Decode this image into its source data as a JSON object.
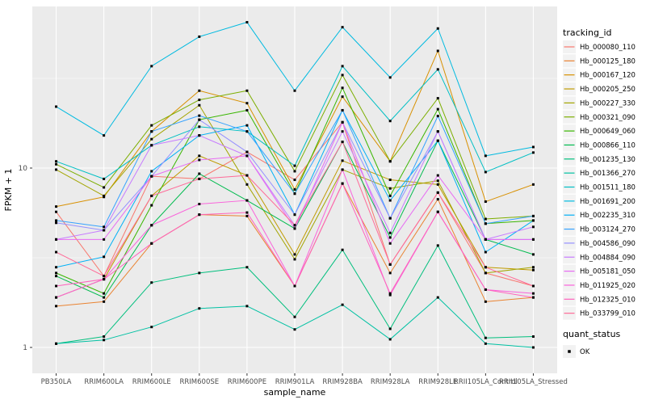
{
  "figure": {
    "y_axis": {
      "title": "FPKM + 1",
      "tick_labels": [
        "1",
        "10"
      ],
      "tick_values": [
        1,
        10
      ]
    },
    "x_axis": {
      "title": "sample_name",
      "tick_labels": [
        "PB350LA",
        "RRIM600LA",
        "RRIM600LE",
        "RRIM600SE",
        "RRIM600PE",
        "RRIM901LA",
        "RRIM928BA",
        "RRIM928LA",
        "RRIM928LE",
        "RRII105LA_Control",
        "RRII105LA_Stressed"
      ]
    },
    "legend_color": {
      "title": "tracking_id"
    },
    "legend_shape": {
      "title": "quant_status",
      "entries": [
        {
          "label": "OK",
          "shape": "filled-black-square"
        }
      ]
    },
    "colors": {
      "panel_background": "#EBEBEB",
      "grid_major": "#FFFFFF",
      "grid_minor": "#FFFFFF",
      "tick_text": "#4D4D4D",
      "axis_title_text": "#000000",
      "legend_key_background": "#F2F2F2",
      "point": "#000000",
      "tick_mark": "#333333"
    }
  },
  "chart_data": {
    "type": "line",
    "title": "",
    "xlabel": "sample_name",
    "ylabel": "FPKM + 1",
    "yscale": "log10",
    "ylim": [
      0.72,
      80
    ],
    "y_major_breaks": [
      1,
      10
    ],
    "y_minor_breaks": [
      3.1623,
      31.623
    ],
    "grid": true,
    "legend_position": "right",
    "point_shape": "filled-square-black",
    "quant_status": "OK",
    "categories": [
      "PB350LA",
      "RRIM600LA",
      "RRIM600LE",
      "RRIM600SE",
      "RRIM600PE",
      "RRIM901LA",
      "RRIM928BA",
      "RRIM928LA",
      "RRIM928LE",
      "RRII105LA_Control",
      "RRII105LA_Stressed"
    ],
    "series": [
      {
        "name": "Hb_000080_110",
        "color": "#F8766D",
        "values": [
          5.7,
          2.5,
          9.0,
          8.7,
          12.3,
          8.6,
          18.0,
          2.9,
          7.3,
          2.6,
          2.2
        ]
      },
      {
        "name": "Hb_000125_180",
        "color": "#EA8331",
        "values": [
          1.7,
          1.8,
          3.8,
          5.5,
          5.4,
          2.2,
          8.2,
          2.6,
          6.7,
          1.8,
          1.9
        ]
      },
      {
        "name": "Hb_000167_120",
        "color": "#D89000",
        "values": [
          6.1,
          6.9,
          16.0,
          27.0,
          23.0,
          7.6,
          25.0,
          10.9,
          45.0,
          6.5,
          8.1
        ]
      },
      {
        "name": "Hb_000205_250",
        "color": "#C09B00",
        "values": [
          1.9,
          2.4,
          7.0,
          11.7,
          9.1,
          3.3,
          11.0,
          8.6,
          8.1,
          2.8,
          2.7
        ]
      },
      {
        "name": "Hb_000227_330",
        "color": "#A3A500",
        "values": [
          9.8,
          7.0,
          14.5,
          22.4,
          8.1,
          3.1,
          9.8,
          7.7,
          8.5,
          2.6,
          2.8
        ]
      },
      {
        "name": "Hb_000321_090",
        "color": "#7CAE00",
        "values": [
          10.5,
          7.8,
          17.3,
          24.0,
          27.0,
          9.6,
          33.0,
          10.9,
          24.5,
          5.2,
          5.4
        ]
      },
      {
        "name": "Hb_000649_060",
        "color": "#39B600",
        "values": [
          2.6,
          2.0,
          6.2,
          18.6,
          21.0,
          7.2,
          28.0,
          7.0,
          21.3,
          4.9,
          5.1
        ]
      },
      {
        "name": "Hb_000866_110",
        "color": "#00BB4E",
        "values": [
          2.5,
          1.9,
          4.8,
          9.3,
          6.6,
          4.6,
          14.0,
          4.1,
          14.2,
          4.0,
          3.3
        ]
      },
      {
        "name": "Hb_001235_130",
        "color": "#00BF7D",
        "values": [
          1.05,
          1.15,
          2.3,
          2.6,
          2.8,
          1.48,
          3.5,
          1.27,
          3.7,
          1.13,
          1.15
        ]
      },
      {
        "name": "Hb_001366_270",
        "color": "#00C1A3",
        "values": [
          1.05,
          1.1,
          1.3,
          1.65,
          1.7,
          1.26,
          1.73,
          1.11,
          1.9,
          1.05,
          1.0
        ]
      },
      {
        "name": "Hb_001511_180",
        "color": "#00BFC4",
        "values": [
          10.9,
          8.7,
          13.4,
          17.0,
          16.0,
          10.3,
          37.0,
          18.3,
          35.5,
          9.5,
          12.2
        ]
      },
      {
        "name": "Hb_001691_200",
        "color": "#00BAE0",
        "values": [
          22.0,
          15.2,
          37.0,
          54.0,
          65.0,
          27.0,
          61.0,
          32.0,
          60.0,
          11.7,
          13.1
        ]
      },
      {
        "name": "Hb_002235_310",
        "color": "#00B0F6",
        "values": [
          2.8,
          3.2,
          9.6,
          15.2,
          17.3,
          5.5,
          21.0,
          6.6,
          14.2,
          3.4,
          5.1
        ]
      },
      {
        "name": "Hb_003124_270",
        "color": "#35A2FF",
        "values": [
          5.1,
          4.7,
          16.0,
          19.6,
          16.0,
          7.2,
          21.0,
          5.25,
          19.5,
          4.9,
          5.4
        ]
      },
      {
        "name": "Hb_004586_090",
        "color": "#9590FF",
        "values": [
          4.95,
          4.5,
          9.0,
          18.6,
          12.3,
          5.5,
          18.0,
          5.25,
          16.0,
          4.0,
          4.0
        ]
      },
      {
        "name": "Hb_004884_090",
        "color": "#C77CFF",
        "values": [
          4.0,
          4.5,
          13.4,
          15.2,
          11.7,
          4.8,
          16.0,
          4.35,
          16.0,
          4.0,
          4.7
        ]
      },
      {
        "name": "Hb_005181_050",
        "color": "#E76BF3",
        "values": [
          4.0,
          4.0,
          9.0,
          11.1,
          11.7,
          4.6,
          18.0,
          3.8,
          9.1,
          4.0,
          4.0
        ]
      },
      {
        "name": "Hb_011925_020",
        "color": "#FA62DB",
        "values": [
          1.9,
          2.4,
          4.8,
          6.3,
          6.6,
          2.2,
          9.8,
          1.96,
          5.7,
          2.1,
          2.0
        ]
      },
      {
        "name": "Hb_012325_010",
        "color": "#FF62BC",
        "values": [
          2.2,
          2.4,
          3.8,
          5.5,
          5.65,
          2.2,
          8.2,
          2.0,
          5.7,
          2.1,
          1.9
        ]
      },
      {
        "name": "Hb_033799_010",
        "color": "#FF6A98",
        "values": [
          3.4,
          2.5,
          7.0,
          8.7,
          9.1,
          4.8,
          14.0,
          2.9,
          7.3,
          2.8,
          2.2
        ]
      }
    ]
  }
}
